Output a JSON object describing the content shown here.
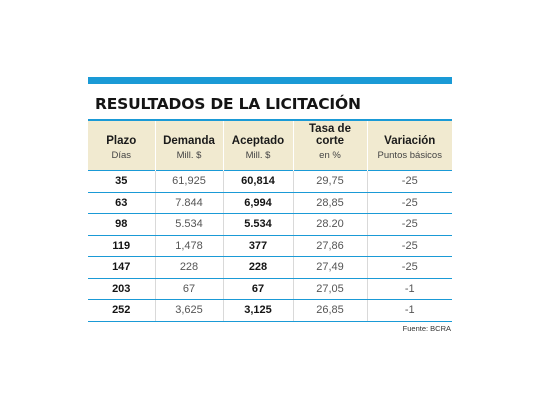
{
  "title": "RESULTADOS DE LA LICITACIÓN",
  "columns": [
    {
      "label": "Plazo",
      "sub": "Días"
    },
    {
      "label": "Demanda",
      "sub": "Mill. $"
    },
    {
      "label": "Aceptado",
      "sub": "Mill. $"
    },
    {
      "label": "Tasa de corte",
      "sub": "en %"
    },
    {
      "label": "Variación",
      "sub": "Puntos básicos"
    }
  ],
  "rows": [
    [
      "35",
      "61,925",
      "60,814",
      "29,75",
      "-25"
    ],
    [
      "63",
      "7.844",
      "6,994",
      "28,85",
      "-25"
    ],
    [
      "98",
      "5.534",
      "5.534",
      "28.20",
      "-25"
    ],
    [
      "119",
      "1,478",
      "377",
      "27,86",
      "-25"
    ],
    [
      "147",
      "228",
      "228",
      "27,49",
      "-25"
    ],
    [
      "203",
      "67",
      "67",
      "27,05",
      "-1"
    ],
    [
      "252",
      "3,625",
      "3,125",
      "26,85",
      "-1"
    ]
  ],
  "source": "Fuente: BCRA",
  "colors": {
    "accent": "#1a9ad6",
    "header_bg": "#f1ead0"
  }
}
